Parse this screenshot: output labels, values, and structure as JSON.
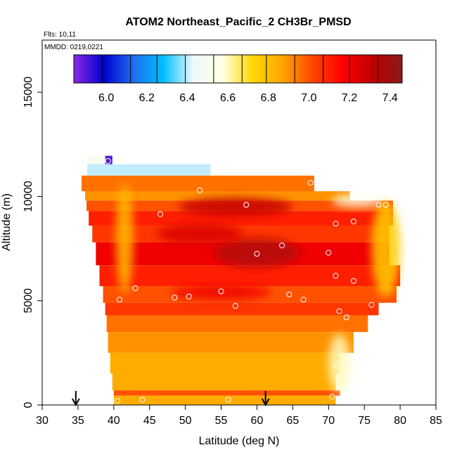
{
  "chart_data": {
    "type": "heatmap",
    "title": "ATOM2 Northeast_Pacific_2 CH3Br_PMSD",
    "flights_label": "Flts: 10,11",
    "dates_label": "MMDD: 0219,0221",
    "xlabel": "Latitude (deg N)",
    "ylabel": "Altitude (m)",
    "xlim": [
      30,
      85
    ],
    "ylim": [
      0,
      17500
    ],
    "x_ticks": [
      30,
      35,
      40,
      45,
      50,
      55,
      60,
      65,
      70,
      75,
      80,
      85
    ],
    "y_ticks": [
      0,
      5000,
      10000,
      15000
    ],
    "colorbar": {
      "range": [
        5.84,
        7.46
      ],
      "ticks": [
        6.0,
        6.2,
        6.4,
        6.6,
        6.8,
        7.0,
        7.2,
        7.4
      ],
      "tick_labels": [
        "6.0",
        "6.2",
        "6.4",
        "6.6",
        "6.8",
        "7.0",
        "7.2",
        "7.4"
      ],
      "divisions": [
        5.84,
        5.98,
        6.12,
        6.25,
        6.39,
        6.53,
        6.67,
        6.79,
        6.93,
        7.07,
        7.2,
        7.34,
        7.46
      ],
      "colors": [
        "#8a2be2",
        "#0000cd",
        "#1e6ff0",
        "#00bfff",
        "#f0f8ff",
        "#ffffe0",
        "#ffd700",
        "#ffa500",
        "#ff4500",
        "#ff0000",
        "#c00000",
        "#8b1a1a"
      ]
    },
    "cells": [
      {
        "x0": 38.8,
        "x1": 39.8,
        "y0": 11550,
        "y1": 11950,
        "value": 5.9
      },
      {
        "x0": 36.3,
        "x1": 38.8,
        "y0": 11550,
        "y1": 11950,
        "value": 6.5
      },
      {
        "x0": 36.3,
        "x1": 53.5,
        "y0": 11000,
        "y1": 11550,
        "value": 6.4
      },
      {
        "x0": 35.5,
        "x1": 68.0,
        "y0": 10250,
        "y1": 11000,
        "value": 6.95
      },
      {
        "x0": 36.0,
        "x1": 73.0,
        "y0": 9800,
        "y1": 10250,
        "value": 6.9
      },
      {
        "x0": 36.2,
        "x1": 79.0,
        "y0": 9300,
        "y1": 9800,
        "value": 7.0
      },
      {
        "x0": 36.5,
        "x1": 79.0,
        "y0": 8600,
        "y1": 9300,
        "value": 7.1
      },
      {
        "x0": 37.0,
        "x1": 78.5,
        "y0": 7800,
        "y1": 8600,
        "value": 7.05
      },
      {
        "x0": 37.5,
        "x1": 78.5,
        "y0": 6700,
        "y1": 7800,
        "value": 7.2
      },
      {
        "x0": 38.0,
        "x1": 80.0,
        "y0": 5700,
        "y1": 6700,
        "value": 7.1
      },
      {
        "x0": 38.5,
        "x1": 79.5,
        "y0": 4900,
        "y1": 5700,
        "value": 7.0
      },
      {
        "x0": 38.8,
        "x1": 77.0,
        "y0": 4300,
        "y1": 4900,
        "value": 7.05
      },
      {
        "x0": 39.0,
        "x1": 75.5,
        "y0": 3500,
        "y1": 4300,
        "value": 6.95
      },
      {
        "x0": 39.2,
        "x1": 73.5,
        "y0": 2500,
        "y1": 3500,
        "value": 6.9
      },
      {
        "x0": 39.5,
        "x1": 71.5,
        "y0": 1500,
        "y1": 2500,
        "value": 6.85
      },
      {
        "x0": 39.8,
        "x1": 71.0,
        "y0": 700,
        "y1": 1500,
        "value": 6.85
      },
      {
        "x0": 40.0,
        "x1": 71.6,
        "y0": 450,
        "y1": 700,
        "value": 7.0
      },
      {
        "x0": 40.0,
        "x1": 71.0,
        "y0": 0,
        "y1": 450,
        "value": 6.85
      }
    ],
    "hotspots": [
      {
        "x": 57,
        "y": 9500,
        "rx": 8,
        "ry": 450,
        "value": 7.3
      },
      {
        "x": 60,
        "y": 7300,
        "rx": 6,
        "ry": 700,
        "value": 7.35
      },
      {
        "x": 52,
        "y": 8200,
        "rx": 6,
        "ry": 500,
        "value": 7.25
      },
      {
        "x": 55,
        "y": 5400,
        "rx": 7,
        "ry": 350,
        "value": 7.2
      },
      {
        "x": 41.5,
        "y": 8000,
        "rx": 1.2,
        "ry": 2600,
        "value": 6.8
      },
      {
        "x": 78,
        "y": 7500,
        "rx": 2,
        "ry": 2300,
        "value": 6.75
      },
      {
        "x": 74,
        "y": 9800,
        "rx": 3.5,
        "ry": 300,
        "value": 6.55
      },
      {
        "x": 71.5,
        "y": 2000,
        "rx": 1.5,
        "ry": 1400,
        "value": 6.6
      }
    ],
    "points": [
      {
        "x": 38.0,
        "y": 11800
      },
      {
        "x": 39.2,
        "y": 11700
      },
      {
        "x": 52.0,
        "y": 10300
      },
      {
        "x": 58.5,
        "y": 9600
      },
      {
        "x": 67.5,
        "y": 10650
      },
      {
        "x": 73.8,
        "y": 9950
      },
      {
        "x": 77.0,
        "y": 9600
      },
      {
        "x": 78.0,
        "y": 9600
      },
      {
        "x": 46.5,
        "y": 9150
      },
      {
        "x": 71.0,
        "y": 8700
      },
      {
        "x": 73.5,
        "y": 8800
      },
      {
        "x": 63.5,
        "y": 7650
      },
      {
        "x": 60.0,
        "y": 7250
      },
      {
        "x": 70.0,
        "y": 7300
      },
      {
        "x": 71.0,
        "y": 6200
      },
      {
        "x": 73.5,
        "y": 5950
      },
      {
        "x": 43.0,
        "y": 5600
      },
      {
        "x": 55.0,
        "y": 5450
      },
      {
        "x": 50.5,
        "y": 5200
      },
      {
        "x": 48.5,
        "y": 5150
      },
      {
        "x": 40.8,
        "y": 5050
      },
      {
        "x": 64.5,
        "y": 5300
      },
      {
        "x": 66.5,
        "y": 5050
      },
      {
        "x": 57.0,
        "y": 4750
      },
      {
        "x": 76.0,
        "y": 4800
      },
      {
        "x": 71.5,
        "y": 4500
      },
      {
        "x": 72.5,
        "y": 4200
      },
      {
        "x": 71.0,
        "y": 1900
      },
      {
        "x": 70.5,
        "y": 400
      },
      {
        "x": 40.5,
        "y": 200
      },
      {
        "x": 44.0,
        "y": 250
      },
      {
        "x": 56.0,
        "y": 250
      }
    ],
    "arrows": [
      34.7,
      61.2
    ]
  }
}
